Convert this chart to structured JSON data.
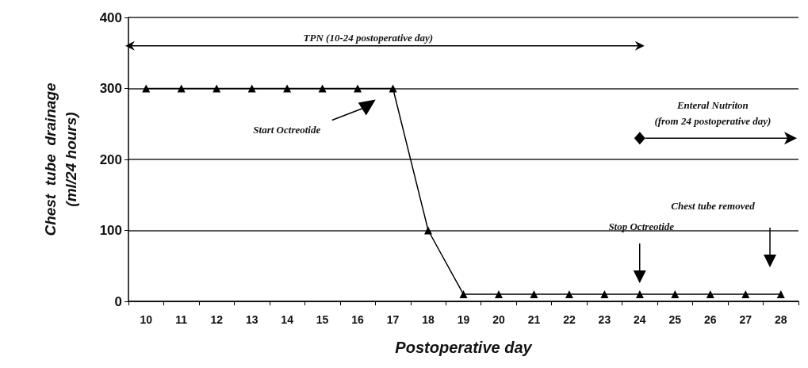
{
  "chart_data": {
    "type": "line",
    "xlabel": "Postoperative day",
    "ylabel": "Chest  tube  drainage\n(ml/24 hours)",
    "categories": [
      "10",
      "11",
      "12",
      "13",
      "14",
      "15",
      "16",
      "17",
      "18",
      "19",
      "20",
      "21",
      "22",
      "23",
      "24",
      "25",
      "26",
      "27",
      "28"
    ],
    "series": [
      {
        "color": "#000000",
        "values": [
          300,
          300,
          300,
          300,
          300,
          300,
          300,
          300,
          100,
          10,
          10,
          10,
          10,
          10,
          10,
          10,
          10,
          10,
          10
        ]
      }
    ],
    "ylim": [
      0,
      400
    ],
    "yticks": [
      0,
      100,
      200,
      300,
      400
    ],
    "grid": "y",
    "marker": "triangle",
    "line_style": "solid",
    "annotations": [
      "TPN (10-24 postoperative day)",
      "Start Octreotide",
      {
        "text": "Enteral Nutriton\n(from 24 postoperative day)",
        "x": "24",
        "y": 230
      },
      "Stop Octreotide",
      "Chest tube removed"
    ]
  }
}
